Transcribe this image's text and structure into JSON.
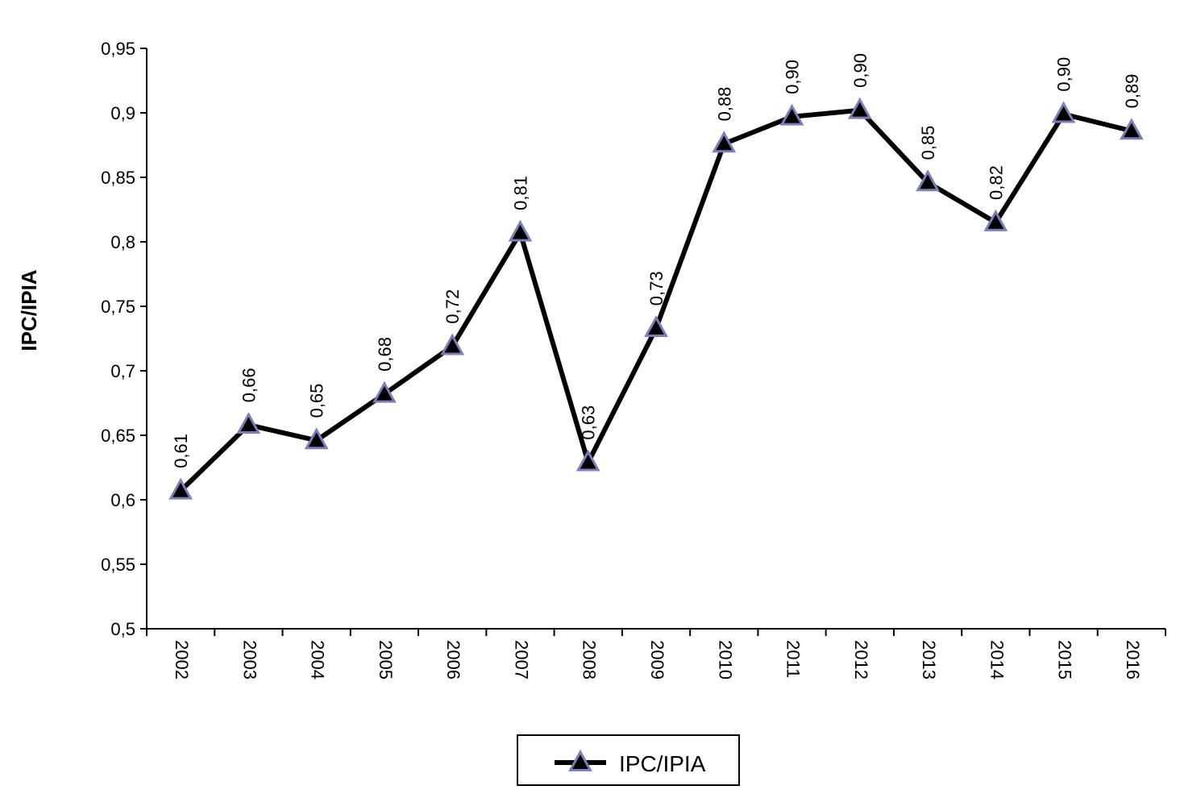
{
  "chart_data": {
    "type": "line",
    "ylabel": "IPC/IPIA",
    "xlabel": "",
    "categories": [
      "2002",
      "2003",
      "2004",
      "2005",
      "2006",
      "2007",
      "2008",
      "2009",
      "2010",
      "2011",
      "2012",
      "2013",
      "2014",
      "2015",
      "2016"
    ],
    "series": [
      {
        "name": "IPC/IPIA",
        "values": [
          0.607,
          0.658,
          0.646,
          0.682,
          0.719,
          0.807,
          0.629,
          0.733,
          0.876,
          0.897,
          0.902,
          0.846,
          0.815,
          0.899,
          0.886
        ],
        "data_labels": [
          "0,61",
          "0,66",
          "0,65",
          "0,68",
          "0,72",
          "0,81",
          "0,63",
          "0,73",
          "0,88",
          "0,90",
          "0,90",
          "0,85",
          "0,82",
          "0,90",
          "0,89"
        ],
        "line_color": "#000000",
        "marker": "triangle",
        "marker_fill": "#000000",
        "marker_stroke": "#7b7fb5"
      }
    ],
    "ylim": [
      0.5,
      0.95
    ],
    "yticks": [
      0.5,
      0.55,
      0.6,
      0.65,
      0.7,
      0.75,
      0.8,
      0.85,
      0.9,
      0.95
    ],
    "ytick_labels": [
      "0,5",
      "0,55",
      "0,6",
      "0,65",
      "0,7",
      "0,75",
      "0,8",
      "0,85",
      "0,9",
      "0,95"
    ],
    "grid": false,
    "legend": {
      "position": "bottom-center",
      "entries": [
        "IPC/IPIA"
      ]
    }
  }
}
